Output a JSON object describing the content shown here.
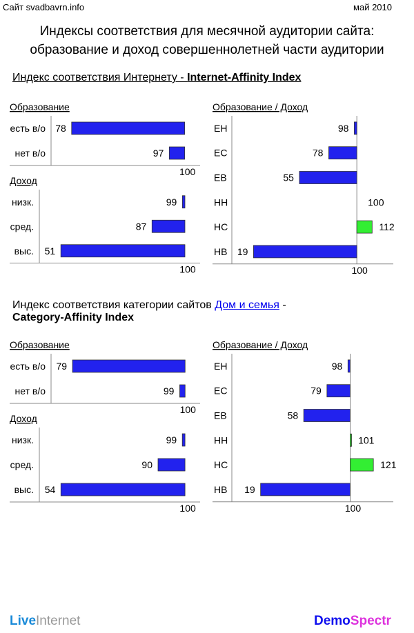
{
  "header": {
    "site": "Сайт svadbavrn.info",
    "date": "май 2010"
  },
  "title": {
    "line1": "Индексы соответствия для месячной аудитории сайта:",
    "line2": "образование и доход совершеннолетней части аудитории"
  },
  "section1": {
    "prefix": "Индекс соответствия Интернету - ",
    "bold": "Internet-Affinity Index"
  },
  "section2": {
    "prefix": "Индекс соответствия категории сайтов ",
    "link": "Дом и семья",
    "suffix": " -",
    "bold": "Category-Affinity Index"
  },
  "footer": {
    "logo_left_a": "Live",
    "logo_left_b": "Internet",
    "logo_right_a": "Demo",
    "logo_right_b": "Spectr"
  },
  "colors": {
    "below": "#2222ee",
    "above": "#33ee33"
  },
  "chart_data": [
    {
      "id": "ia-edu",
      "type": "bar",
      "title": "Образование",
      "categories": [
        "есть в/о",
        "нет в/о"
      ],
      "values": [
        78,
        97
      ],
      "baseline": 100,
      "xlim": [
        74,
        103
      ],
      "tick": "100"
    },
    {
      "id": "ia-inc",
      "type": "bar",
      "title": "Доход",
      "categories": [
        "низк.",
        "сред.",
        "выс."
      ],
      "values": [
        99,
        87,
        51
      ],
      "baseline": 100,
      "xlim": [
        42.5,
        106
      ],
      "tick": "100"
    },
    {
      "id": "ia-ed-inc",
      "type": "bar",
      "title": "Образование / Доход",
      "categories": [
        "ЕН",
        "ЕС",
        "ЕВ",
        "НН",
        "НС",
        "НВ"
      ],
      "values": [
        98,
        78,
        55,
        100,
        112,
        19
      ],
      "baseline": 100,
      "xlim": [
        2,
        128.6
      ],
      "tick": "100"
    },
    {
      "id": "ca-edu",
      "type": "bar",
      "title": "Образование",
      "categories": [
        "есть в/о",
        "нет в/о"
      ],
      "values": [
        79,
        99
      ],
      "baseline": 100,
      "xlim": [
        75,
        102.8
      ],
      "tick": "100"
    },
    {
      "id": "ca-inc",
      "type": "bar",
      "title": "Доход",
      "categories": [
        "низк.",
        "сред.",
        "выс."
      ],
      "values": [
        99,
        90,
        54
      ],
      "baseline": 100,
      "xlim": [
        46,
        105.6
      ],
      "tick": "100"
    },
    {
      "id": "ca-ed-inc",
      "type": "bar",
      "title": "Образование / Доход",
      "categories": [
        "ЕН",
        "ЕС",
        "ЕВ",
        "НН",
        "НС",
        "НВ"
      ],
      "values": [
        98,
        79,
        58,
        101,
        121,
        19
      ],
      "baseline": 100,
      "xlim": [
        -7,
        139
      ],
      "tick": "100"
    }
  ]
}
